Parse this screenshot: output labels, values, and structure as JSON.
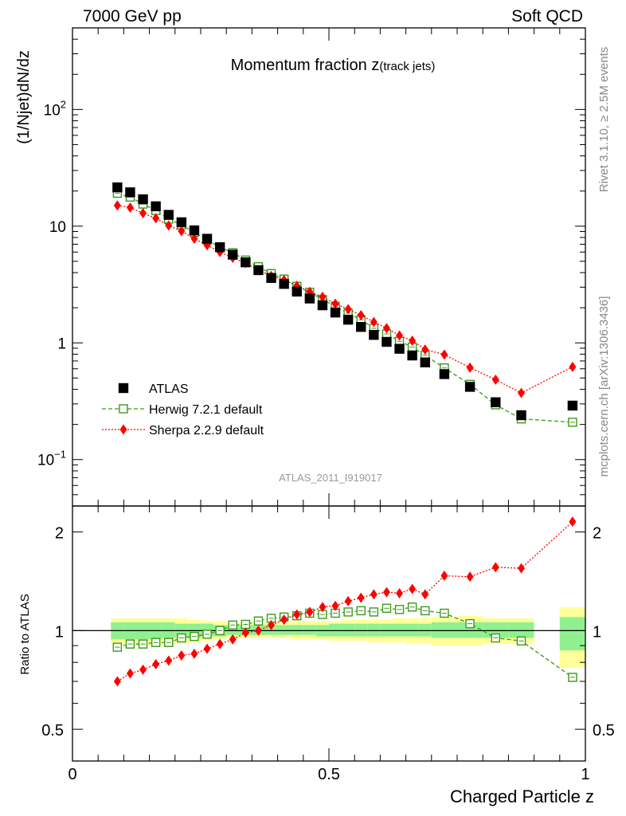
{
  "header": {
    "left": "7000 GeV pp",
    "right": "Soft QCD"
  },
  "side_labels": {
    "rivet": "Rivet 3.1.10, ≥ 2.5M events",
    "mcplots": "mcplots.cern.ch [arXiv:1306.3436]"
  },
  "chart_data": {
    "type": "scatter",
    "title": "Momentum fraction z",
    "title_sub": "(track jets)",
    "analysis_label": "ATLAS_2011_I919017",
    "xlabel": "Charged Particle z",
    "ylabel_main": "(1/Njet)dN/dz",
    "ylabel_ratio": "Ratio to ATLAS",
    "xlim": [
      0,
      1
    ],
    "ylim_main": [
      0.04,
      500
    ],
    "ylim_ratio": [
      0.4,
      2.4
    ],
    "log_y_main": true,
    "log_y_ratio": true,
    "main_ticks": {
      "major": [
        {
          "v": 0.1,
          "mant": "10",
          "exp": "−1"
        },
        {
          "v": 1,
          "label": "1"
        },
        {
          "v": 10,
          "label": "10"
        },
        {
          "v": 100,
          "mant": "10",
          "exp": "2"
        }
      ]
    },
    "ratio_ticks": [
      {
        "v": 0.5,
        "label": "0.5"
      },
      {
        "v": 1,
        "label": "1"
      },
      {
        "v": 2,
        "label": "2"
      }
    ],
    "x_ticks": [
      {
        "v": 0,
        "label": "0"
      },
      {
        "v": 0.5,
        "label": "0.5"
      },
      {
        "v": 1,
        "label": "1"
      }
    ],
    "x": [
      0.0875,
      0.1125,
      0.1375,
      0.1625,
      0.1875,
      0.2125,
      0.2375,
      0.2625,
      0.2875,
      0.3125,
      0.3375,
      0.3625,
      0.3875,
      0.4125,
      0.4375,
      0.4625,
      0.4875,
      0.5125,
      0.5375,
      0.5625,
      0.5875,
      0.6125,
      0.6375,
      0.6625,
      0.6875,
      0.725,
      0.775,
      0.825,
      0.875,
      0.975
    ],
    "series": [
      {
        "name": "ATLAS",
        "style": "data",
        "color": "#000000",
        "values": [
          21.5,
          19.5,
          17.0,
          14.8,
          12.5,
          10.8,
          9.2,
          7.8,
          6.6,
          5.7,
          4.9,
          4.2,
          3.6,
          3.2,
          2.75,
          2.4,
          2.1,
          1.82,
          1.58,
          1.37,
          1.17,
          1.02,
          0.89,
          0.78,
          0.68,
          0.54,
          0.42,
          0.31,
          0.24,
          0.29
        ]
      },
      {
        "name": "Herwig 7.2.1 default",
        "style": "open-square",
        "color": "#3a9a1a",
        "ratio": [
          0.89,
          0.91,
          0.91,
          0.92,
          0.92,
          0.95,
          0.96,
          0.975,
          1.0,
          1.04,
          1.045,
          1.07,
          1.09,
          1.1,
          1.11,
          1.13,
          1.12,
          1.13,
          1.14,
          1.15,
          1.14,
          1.17,
          1.16,
          1.18,
          1.15,
          1.13,
          1.05,
          0.95,
          0.93,
          0.72
        ]
      },
      {
        "name": "Sherpa 2.2.9 default",
        "style": "diamond",
        "color": "#ff0000",
        "ratio": [
          0.7,
          0.74,
          0.76,
          0.79,
          0.81,
          0.84,
          0.85,
          0.88,
          0.91,
          0.94,
          0.985,
          1.0,
          1.04,
          1.08,
          1.12,
          1.14,
          1.18,
          1.19,
          1.23,
          1.26,
          1.29,
          1.31,
          1.3,
          1.34,
          1.29,
          1.47,
          1.46,
          1.56,
          1.55,
          2.15
        ]
      }
    ],
    "bands": {
      "green_color": "#90f090",
      "yellow_color": "#ffff99",
      "bins": [
        {
          "lo": 0.075,
          "hi": 0.1,
          "g": [
            0.94,
            1.06
          ],
          "y": [
            0.9,
            1.09
          ]
        },
        {
          "lo": 0.1,
          "hi": 0.125,
          "g": [
            0.94,
            1.06
          ],
          "y": [
            0.9,
            1.09
          ]
        },
        {
          "lo": 0.125,
          "hi": 0.15,
          "g": [
            0.94,
            1.06
          ],
          "y": [
            0.9,
            1.09
          ]
        },
        {
          "lo": 0.15,
          "hi": 0.175,
          "g": [
            0.94,
            1.06
          ],
          "y": [
            0.9,
            1.09
          ]
        },
        {
          "lo": 0.175,
          "hi": 0.2,
          "g": [
            0.95,
            1.06
          ],
          "y": [
            0.91,
            1.09
          ]
        },
        {
          "lo": 0.2,
          "hi": 0.225,
          "g": [
            0.95,
            1.05
          ],
          "y": [
            0.91,
            1.09
          ]
        },
        {
          "lo": 0.225,
          "hi": 0.25,
          "g": [
            0.95,
            1.05
          ],
          "y": [
            0.92,
            1.08
          ]
        },
        {
          "lo": 0.25,
          "hi": 0.275,
          "g": [
            0.96,
            1.05
          ],
          "y": [
            0.93,
            1.07
          ]
        },
        {
          "lo": 0.275,
          "hi": 0.3,
          "g": [
            0.96,
            1.04
          ],
          "y": [
            0.94,
            1.07
          ]
        },
        {
          "lo": 0.3,
          "hi": 0.325,
          "g": [
            0.97,
            1.04
          ],
          "y": [
            0.95,
            1.06
          ]
        },
        {
          "lo": 0.325,
          "hi": 0.35,
          "g": [
            0.97,
            1.04
          ],
          "y": [
            0.95,
            1.06
          ]
        },
        {
          "lo": 0.35,
          "hi": 0.375,
          "g": [
            0.97,
            1.04
          ],
          "y": [
            0.95,
            1.06
          ]
        },
        {
          "lo": 0.375,
          "hi": 0.4,
          "g": [
            0.97,
            1.04
          ],
          "y": [
            0.95,
            1.06
          ]
        },
        {
          "lo": 0.4,
          "hi": 0.425,
          "g": [
            0.97,
            1.04
          ],
          "y": [
            0.95,
            1.06
          ]
        },
        {
          "lo": 0.425,
          "hi": 0.45,
          "g": [
            0.97,
            1.04
          ],
          "y": [
            0.94,
            1.07
          ]
        },
        {
          "lo": 0.45,
          "hi": 0.475,
          "g": [
            0.97,
            1.04
          ],
          "y": [
            0.94,
            1.07
          ]
        },
        {
          "lo": 0.475,
          "hi": 0.5,
          "g": [
            0.96,
            1.04
          ],
          "y": [
            0.94,
            1.07
          ]
        },
        {
          "lo": 0.5,
          "hi": 0.525,
          "g": [
            0.96,
            1.05
          ],
          "y": [
            0.93,
            1.07
          ]
        },
        {
          "lo": 0.525,
          "hi": 0.55,
          "g": [
            0.96,
            1.05
          ],
          "y": [
            0.93,
            1.08
          ]
        },
        {
          "lo": 0.55,
          "hi": 0.575,
          "g": [
            0.96,
            1.05
          ],
          "y": [
            0.93,
            1.08
          ]
        },
        {
          "lo": 0.575,
          "hi": 0.6,
          "g": [
            0.96,
            1.05
          ],
          "y": [
            0.92,
            1.08
          ]
        },
        {
          "lo": 0.6,
          "hi": 0.625,
          "g": [
            0.96,
            1.05
          ],
          "y": [
            0.92,
            1.08
          ]
        },
        {
          "lo": 0.625,
          "hi": 0.65,
          "g": [
            0.96,
            1.05
          ],
          "y": [
            0.92,
            1.09
          ]
        },
        {
          "lo": 0.65,
          "hi": 0.675,
          "g": [
            0.96,
            1.05
          ],
          "y": [
            0.91,
            1.09
          ]
        },
        {
          "lo": 0.675,
          "hi": 0.7,
          "g": [
            0.96,
            1.05
          ],
          "y": [
            0.91,
            1.09
          ]
        },
        {
          "lo": 0.7,
          "hi": 0.75,
          "g": [
            0.95,
            1.06
          ],
          "y": [
            0.9,
            1.1
          ]
        },
        {
          "lo": 0.75,
          "hi": 0.8,
          "g": [
            0.95,
            1.06
          ],
          "y": [
            0.9,
            1.11
          ]
        },
        {
          "lo": 0.8,
          "hi": 0.85,
          "g": [
            0.95,
            1.06
          ],
          "y": [
            0.91,
            1.09
          ]
        },
        {
          "lo": 0.85,
          "hi": 0.9,
          "g": [
            0.95,
            1.06
          ],
          "y": [
            0.91,
            1.09
          ]
        },
        {
          "lo": 0.95,
          "hi": 1.0,
          "g": [
            0.87,
            1.1
          ],
          "y": [
            0.77,
            1.18
          ]
        }
      ]
    },
    "legend_position": "middle-left"
  }
}
